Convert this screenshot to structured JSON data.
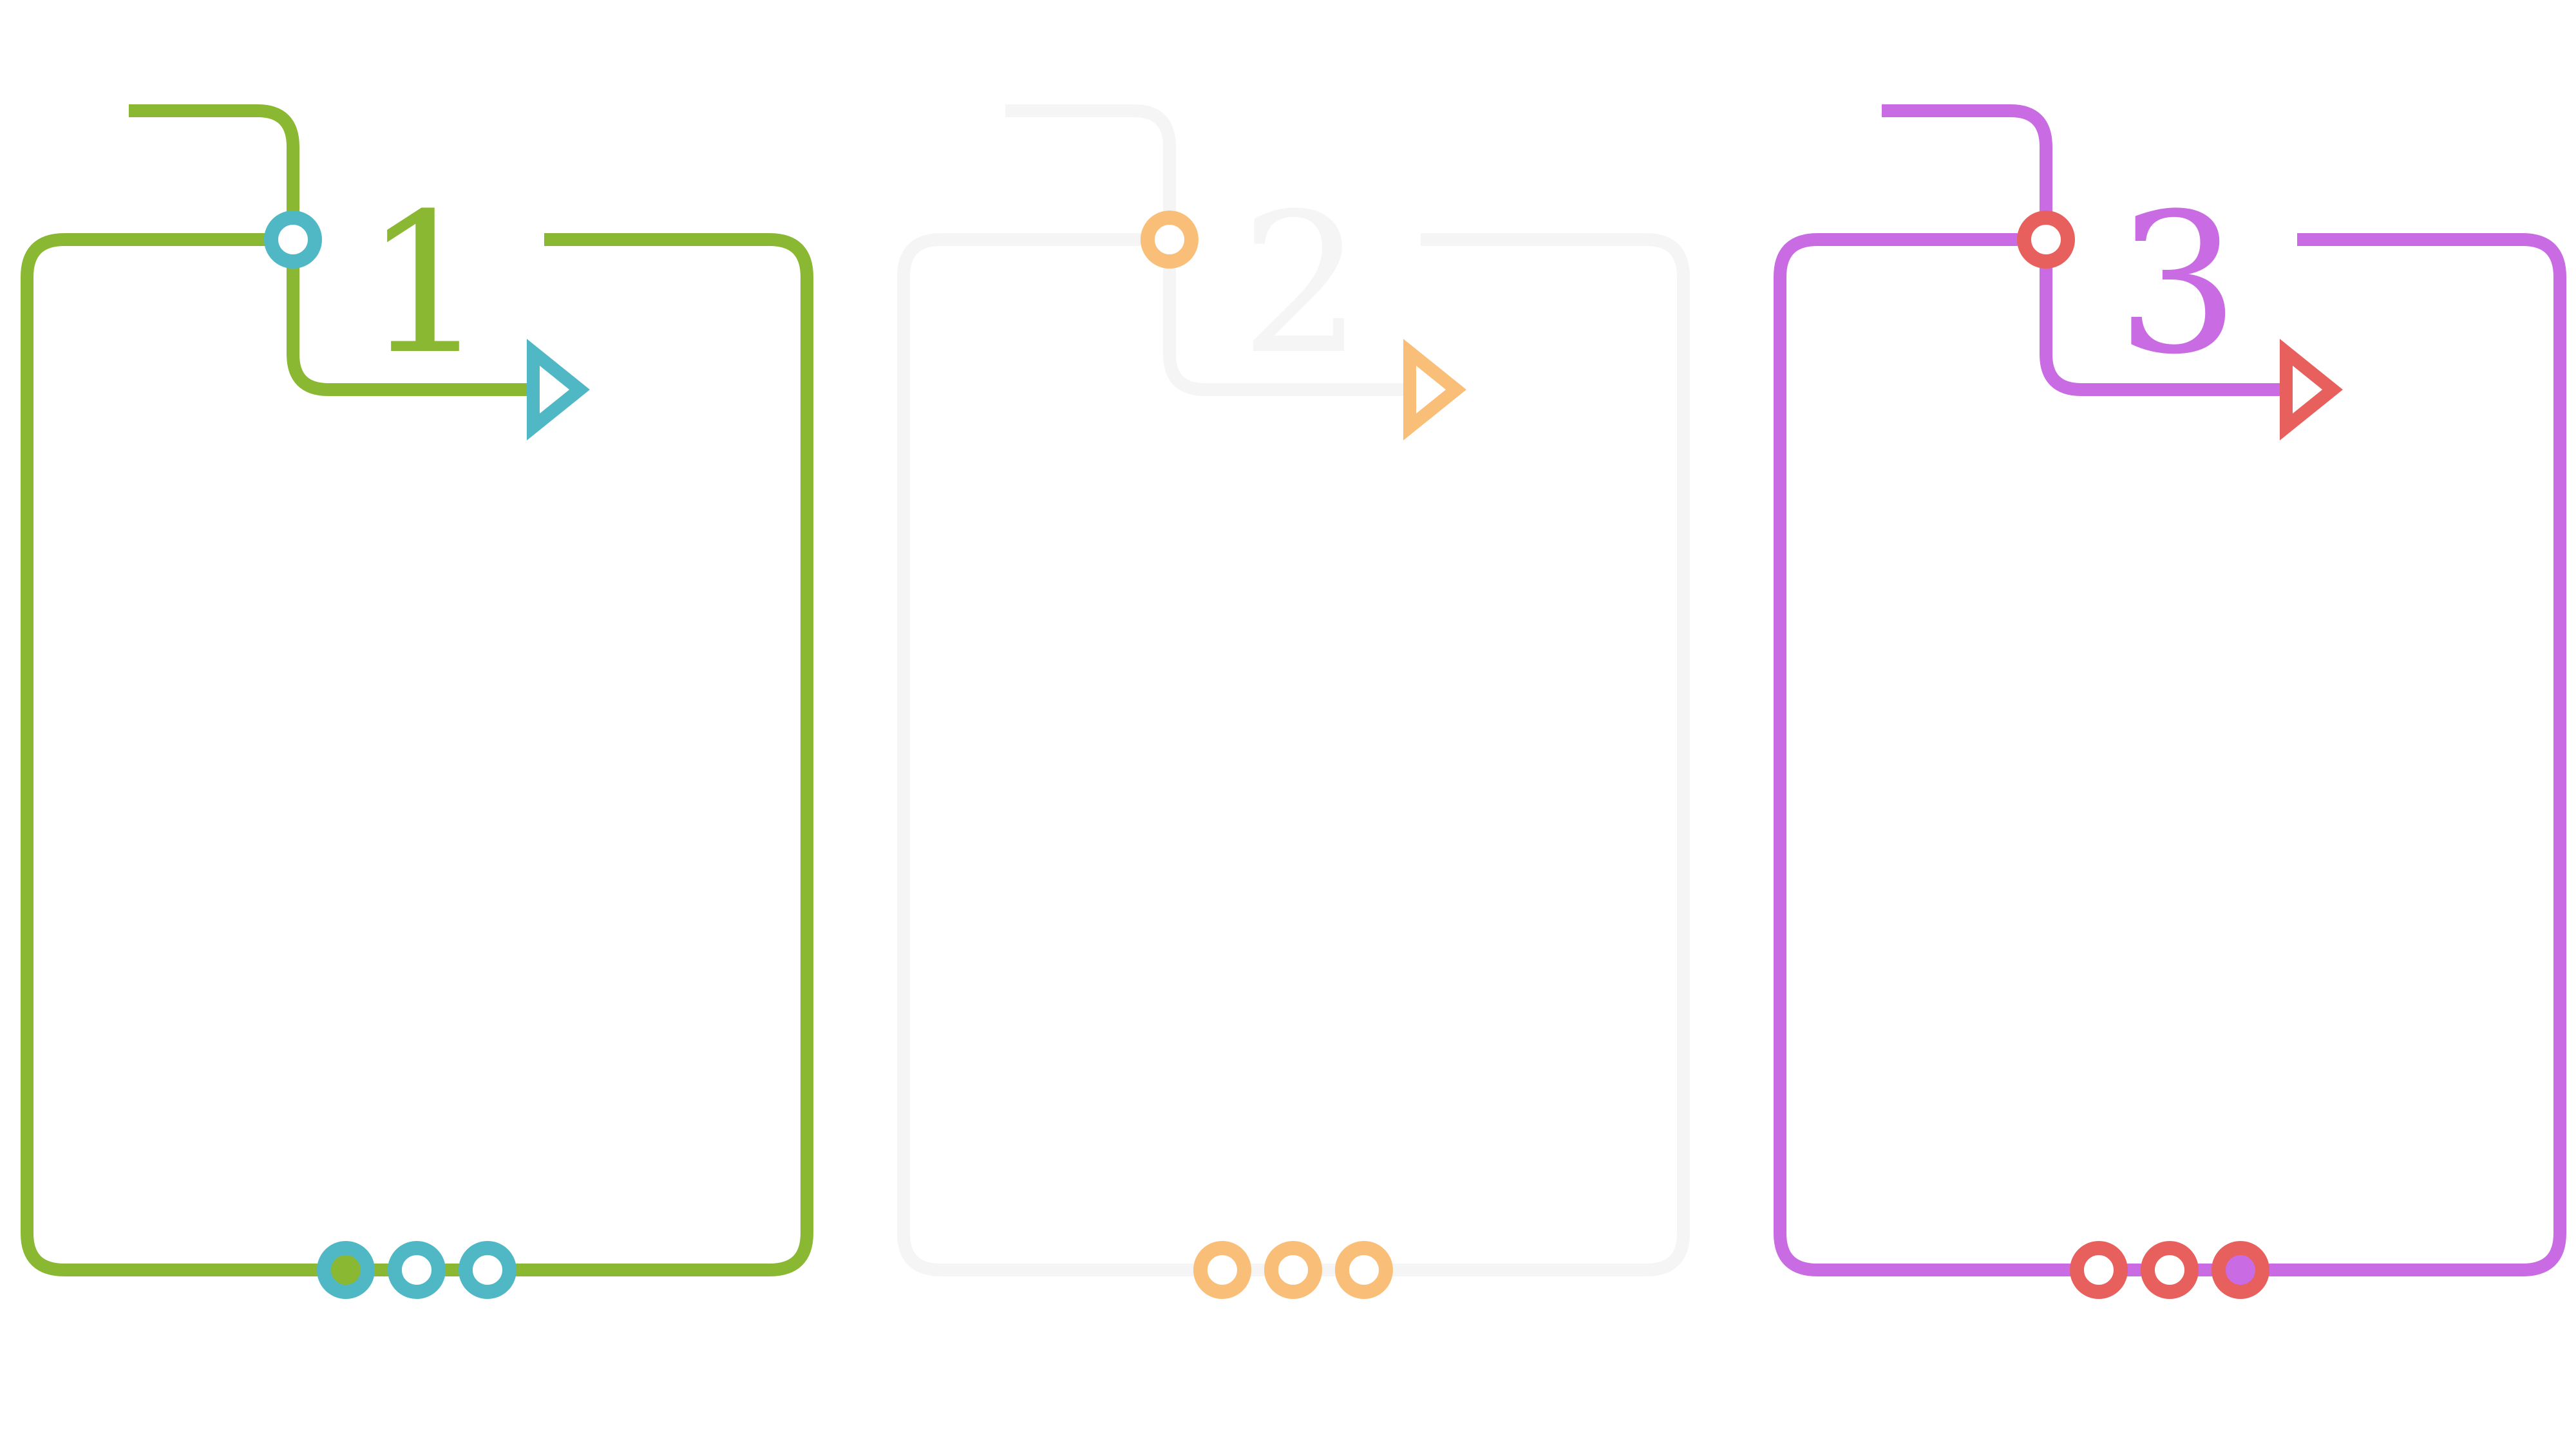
{
  "cards": [
    {
      "number": "1",
      "frame_color": "#8AB833",
      "accent_color": "#4FB8C4",
      "bottom_dots": [
        "filled",
        "hollow",
        "hollow"
      ]
    },
    {
      "number": "2",
      "frame_color": "#F5F5F5",
      "accent_color": "#F9BE77",
      "bottom_dots": [
        "hollow",
        "hollow",
        "hollow"
      ]
    },
    {
      "number": "3",
      "frame_color": "#C96BE2",
      "accent_color": "#E8605E",
      "bottom_dots": [
        "hollow",
        "hollow",
        "filled"
      ]
    }
  ]
}
